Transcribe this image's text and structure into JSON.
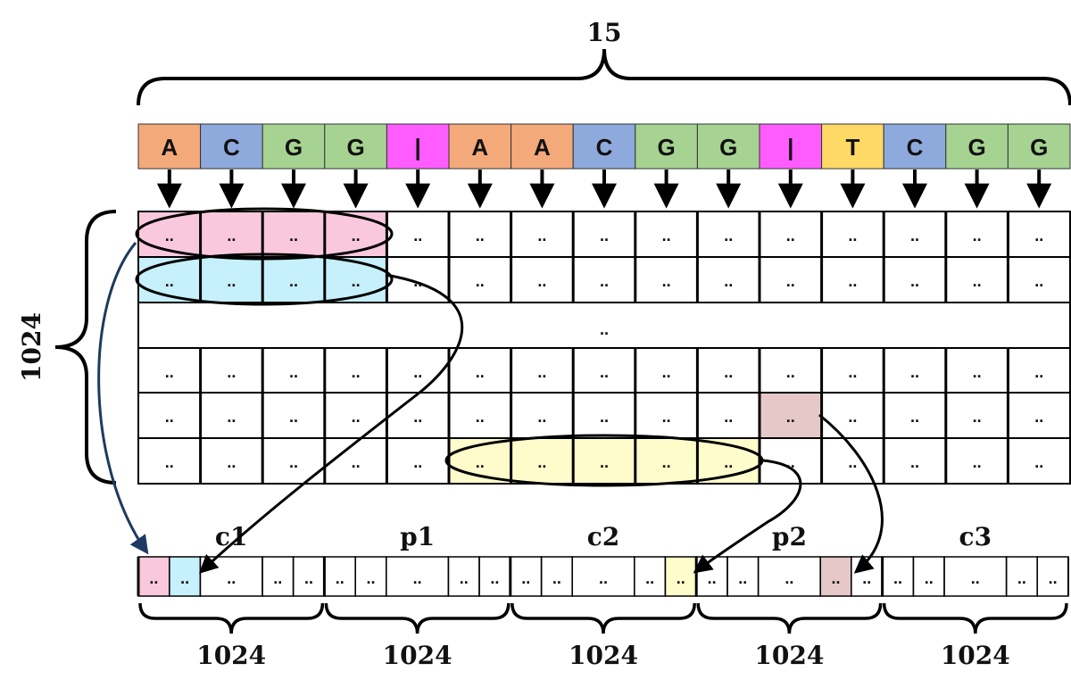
{
  "top_brace_label": "15",
  "left_brace_label": "1024",
  "sequence": [
    "A",
    "C",
    "G",
    "G",
    "|",
    "A",
    "A",
    "C",
    "G",
    "G",
    "|",
    "T",
    "C",
    "G",
    "G"
  ],
  "token_colors": {
    "A": "#f4a97a",
    "C": "#8ea9dc",
    "G": "#a6d391",
    "|": "#ff5cff",
    "T": "#ffd966"
  },
  "cell_text": "..",
  "middle_row_text": "..",
  "highlight_colors": {
    "pink": "#fac8dc",
    "cyan": "#c6f0fb",
    "yellow": "#fffccc",
    "rose": "#e6c8c8"
  },
  "output_groups": [
    "c1",
    "p1",
    "c2",
    "p2",
    "c3"
  ],
  "output_group_size_labels": [
    "1024",
    "1024",
    "1024",
    "1024",
    "1024"
  ]
}
